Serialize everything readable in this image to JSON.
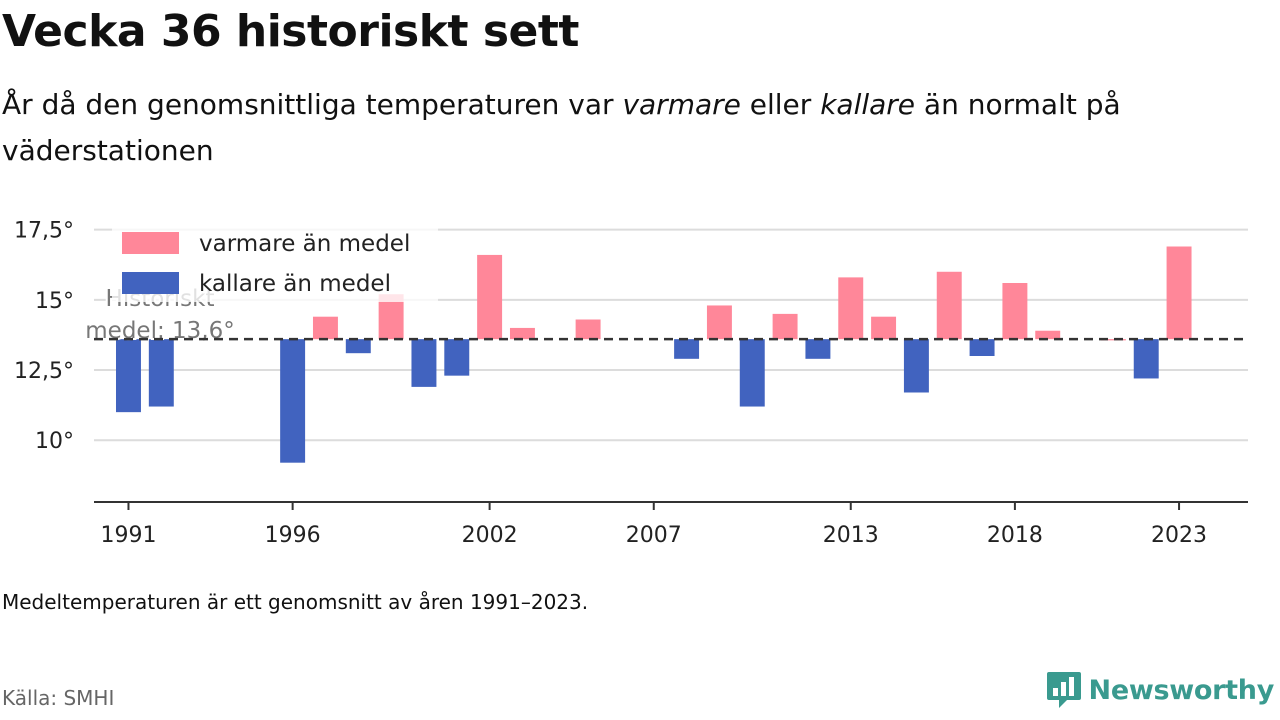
{
  "header": {
    "title": "Vecka 36 historiskt sett",
    "subtitle_parts": [
      "År då den genomsnittliga temperaturen var ",
      "varmare",
      " eller ",
      "kallare",
      " än normalt på väderstationen"
    ]
  },
  "chart_data": {
    "type": "bar",
    "x": [
      1991,
      1992,
      1993,
      1994,
      1995,
      1996,
      1997,
      1998,
      1999,
      2000,
      2001,
      2002,
      2003,
      2004,
      2005,
      2006,
      2007,
      2008,
      2009,
      2010,
      2011,
      2012,
      2013,
      2014,
      2015,
      2016,
      2017,
      2018,
      2019,
      2020,
      2021,
      2022,
      2023
    ],
    "values": [
      11.0,
      11.2,
      null,
      null,
      null,
      9.2,
      14.4,
      13.1,
      15.2,
      11.9,
      12.3,
      16.6,
      14.0,
      null,
      14.3,
      null,
      null,
      12.9,
      14.8,
      11.2,
      14.5,
      12.9,
      15.8,
      14.4,
      11.7,
      16.0,
      13.0,
      15.6,
      13.9,
      null,
      13.6,
      12.2,
      16.9
    ],
    "baseline": 13.6,
    "baseline_label_lines": [
      "Historiskt",
      "medel: 13,6°"
    ],
    "x_ticks": [
      1991,
      1996,
      2002,
      2007,
      2013,
      2018,
      2023
    ],
    "y_ticks": [
      10,
      12.5,
      15,
      17.5
    ],
    "y_tick_labels": [
      "10°",
      "12,5°",
      "15°",
      "17,5°"
    ],
    "ylim": [
      7.8,
      18.2
    ],
    "xlim": [
      1989.95,
      2025.1
    ],
    "xlabel": "",
    "ylabel": "",
    "legend": {
      "position": "top-left",
      "items": [
        {
          "label": "varmare än medel",
          "color": "#ff8799"
        },
        {
          "label": "kallare än medel",
          "color": "#4163bf"
        }
      ]
    },
    "colors": {
      "warm": "#ff8799",
      "cold": "#4163bf",
      "grid": "#dcdcdc",
      "axis": "#333333",
      "baseline": "#333333"
    }
  },
  "footer": {
    "note": "Medeltemperaturen är ett genomsnitt av åren 1991–2023.",
    "source": "Källa: SMHI",
    "brand": "Newsworthy",
    "brand_icon": "bar-chart-speech-bubble-icon",
    "brand_color": "#3a9a8f"
  }
}
